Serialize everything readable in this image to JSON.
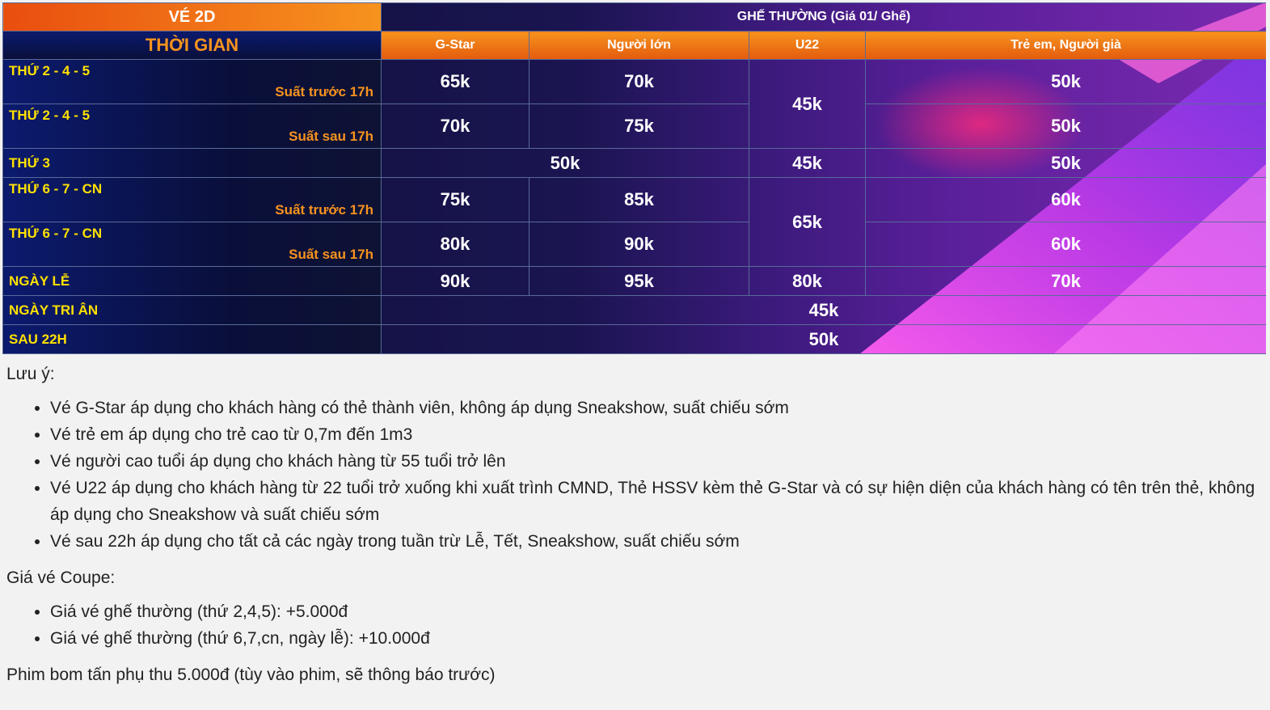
{
  "table": {
    "title": "VÉ 2D",
    "seat_group": "GHẾ THƯỜNG (Giá 01/ Ghế)",
    "time_header": "THỜI GIAN",
    "columns": [
      "G-Star",
      "Người lớn",
      "U22",
      "Trẻ em, Người già"
    ],
    "rows": [
      {
        "day": "THỨ 2 - 4 - 5",
        "session": "Suất trước 17h",
        "gstar": "65k",
        "adult": "70k",
        "u22": "45k",
        "child": "50k"
      },
      {
        "day": "THỨ 2 - 4 - 5",
        "session": "Suất sau 17h",
        "gstar": "70k",
        "adult": "75k",
        "child": "50k"
      },
      {
        "day": "THỨ 3",
        "merged": "50k",
        "u22": "45k",
        "child": "50k"
      },
      {
        "day": "THỨ 6 - 7 - CN",
        "session": "Suất trước 17h",
        "gstar": "75k",
        "adult": "85k",
        "u22": "65k",
        "child": "60k"
      },
      {
        "day": "THỨ 6 - 7 - CN",
        "session": "Suất sau 17h",
        "gstar": "80k",
        "adult": "90k",
        "child": "60k"
      },
      {
        "day": "NGÀY LỄ",
        "gstar": "90k",
        "adult": "95k",
        "u22": "80k",
        "child": "70k"
      },
      {
        "day": "NGÀY TRI ÂN",
        "all": "45k"
      },
      {
        "day": "SAU 22H",
        "all": "50k"
      }
    ]
  },
  "notes": {
    "title": "Lưu ý:",
    "items": [
      "Vé G-Star áp dụng cho khách hàng có thẻ thành viên, không áp dụng Sneakshow, suất chiếu sớm",
      "Vé trẻ em áp dụng cho trẻ cao từ 0,7m đến 1m3",
      "Vé người cao tuổi áp dụng cho khách hàng từ 55 tuổi trở lên",
      "Vé U22 áp dụng cho khách hàng từ 22 tuổi trở xuống khi xuất trình CMND, Thẻ HSSV kèm thẻ G-Star và có sự hiện diện của khách hàng có tên trên thẻ, không áp dụng cho Sneakshow và suất chiếu sớm",
      "Vé sau 22h áp dụng cho tất cả các ngày trong tuần trừ Lễ, Tết, Sneakshow, suất chiếu sớm"
    ],
    "coupe_title": "Giá vé Coupe:",
    "coupe_items": [
      "Giá vé ghế thường (thứ 2,4,5): +5.000đ",
      "Giá vé ghế thường (thứ 6,7,cn, ngày lễ): +10.000đ"
    ],
    "footer": "Phim bom tấn phụ thu 5.000đ (tùy vào phim, sẽ thông báo trước)"
  },
  "colors": {
    "header_orange": "#f7931e",
    "label_yellow": "#ffe100",
    "background_navy": "#0c1138",
    "accent_magenta": "#e040fb"
  }
}
